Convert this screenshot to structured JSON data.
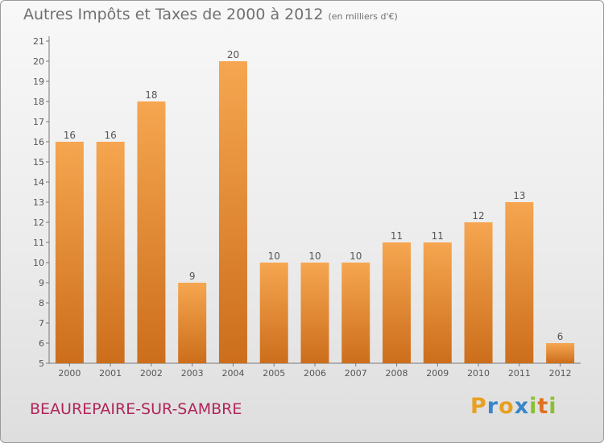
{
  "title": "Autres Impôts et Taxes de 2000 à 2012",
  "subtitle": "(en milliers d'€)",
  "location": "BEAUREPAIRE-SUR-SAMBRE",
  "logo": {
    "letters": [
      {
        "ch": "P",
        "color": "#e8a020"
      },
      {
        "ch": "r",
        "color": "#3a86c8"
      },
      {
        "ch": "o",
        "color": "#e8a020"
      },
      {
        "ch": "x",
        "color": "#3a86c8"
      },
      {
        "ch": "i",
        "color": "#8ac030"
      },
      {
        "ch": "t",
        "color": "#e07020"
      },
      {
        "ch": "i",
        "color": "#8ac030"
      }
    ]
  },
  "chart_data": {
    "type": "bar",
    "categories": [
      "2000",
      "2001",
      "2002",
      "2003",
      "2004",
      "2005",
      "2006",
      "2007",
      "2008",
      "2009",
      "2010",
      "2011",
      "2012"
    ],
    "values": [
      16,
      16,
      18,
      9,
      20,
      10,
      10,
      10,
      11,
      11,
      12,
      13,
      6
    ],
    "ylim": [
      5,
      21
    ],
    "yticks": [
      5,
      6,
      7,
      8,
      9,
      10,
      11,
      12,
      13,
      14,
      15,
      16,
      17,
      18,
      19,
      20,
      21
    ],
    "grid": false,
    "bar_color_top": "#f6a650",
    "bar_color_bottom": "#cc6e1c"
  }
}
